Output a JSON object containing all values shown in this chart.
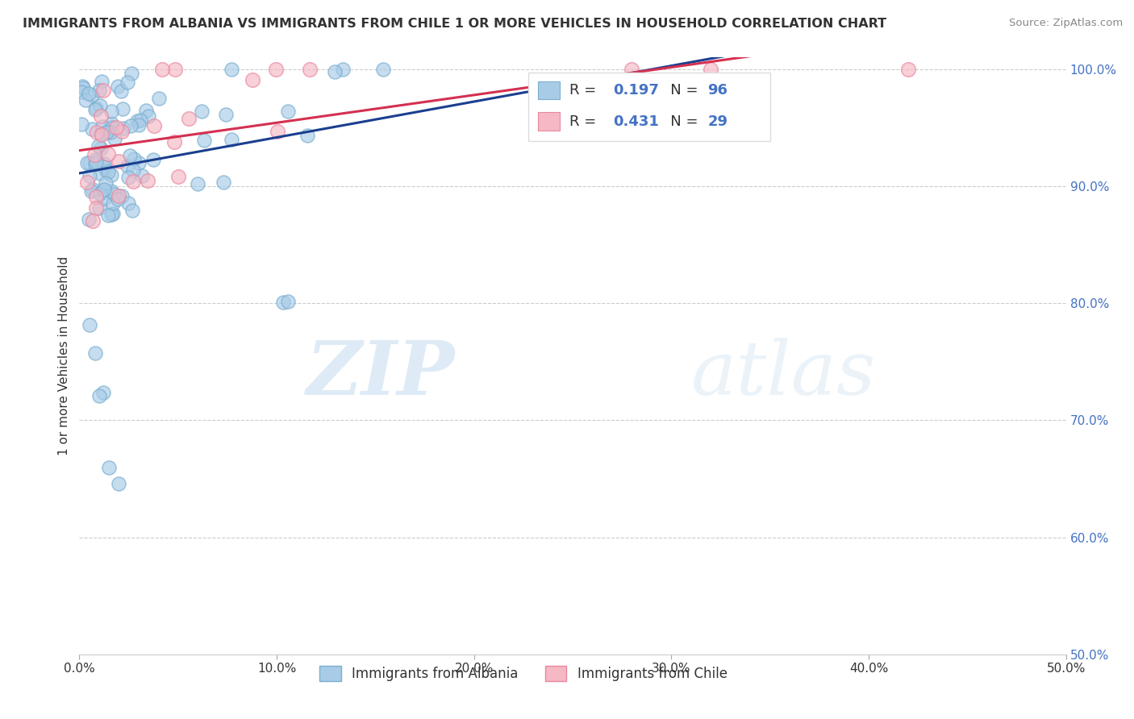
{
  "title": "IMMIGRANTS FROM ALBANIA VS IMMIGRANTS FROM CHILE 1 OR MORE VEHICLES IN HOUSEHOLD CORRELATION CHART",
  "source": "Source: ZipAtlas.com",
  "ylabel": "1 or more Vehicles in Household",
  "xmin": 0.0,
  "xmax": 0.5,
  "ymin": 0.5,
  "ymax": 1.01,
  "yticks": [
    0.5,
    0.6,
    0.7,
    0.8,
    0.9,
    1.0
  ],
  "ytick_labels": [
    "50.0%",
    "60.0%",
    "70.0%",
    "80.0%",
    "90.0%",
    "100.0%"
  ],
  "xticks": [
    0.0,
    0.1,
    0.2,
    0.3,
    0.4,
    0.5
  ],
  "xtick_labels": [
    "0.0%",
    "10.0%",
    "20.0%",
    "30.0%",
    "40.0%",
    "50.0%"
  ],
  "albania_color": "#a8cce8",
  "chile_color": "#f5b8c4",
  "albania_edge": "#7aaed0",
  "chile_edge": "#e888a0",
  "albania_line_color": "#1a3f8f",
  "chile_line_color": "#d43050",
  "albania_R": 0.197,
  "albania_N": 96,
  "chile_R": 0.431,
  "chile_N": 29,
  "legend_label_albania": "Immigrants from Albania",
  "legend_label_chile": "Immigrants from Chile",
  "watermark_zip": "ZIP",
  "watermark_atlas": "atlas",
  "background_color": "#ffffff",
  "grid_color": "#cccccc",
  "title_color": "#333333",
  "source_color": "#888888",
  "ylabel_color": "#333333",
  "xtick_color": "#333333",
  "ytick_color": "#4472c4",
  "legend_R_color": "#333333",
  "legend_N_color": "#4472c4",
  "legend_val_color": "#4472c4"
}
